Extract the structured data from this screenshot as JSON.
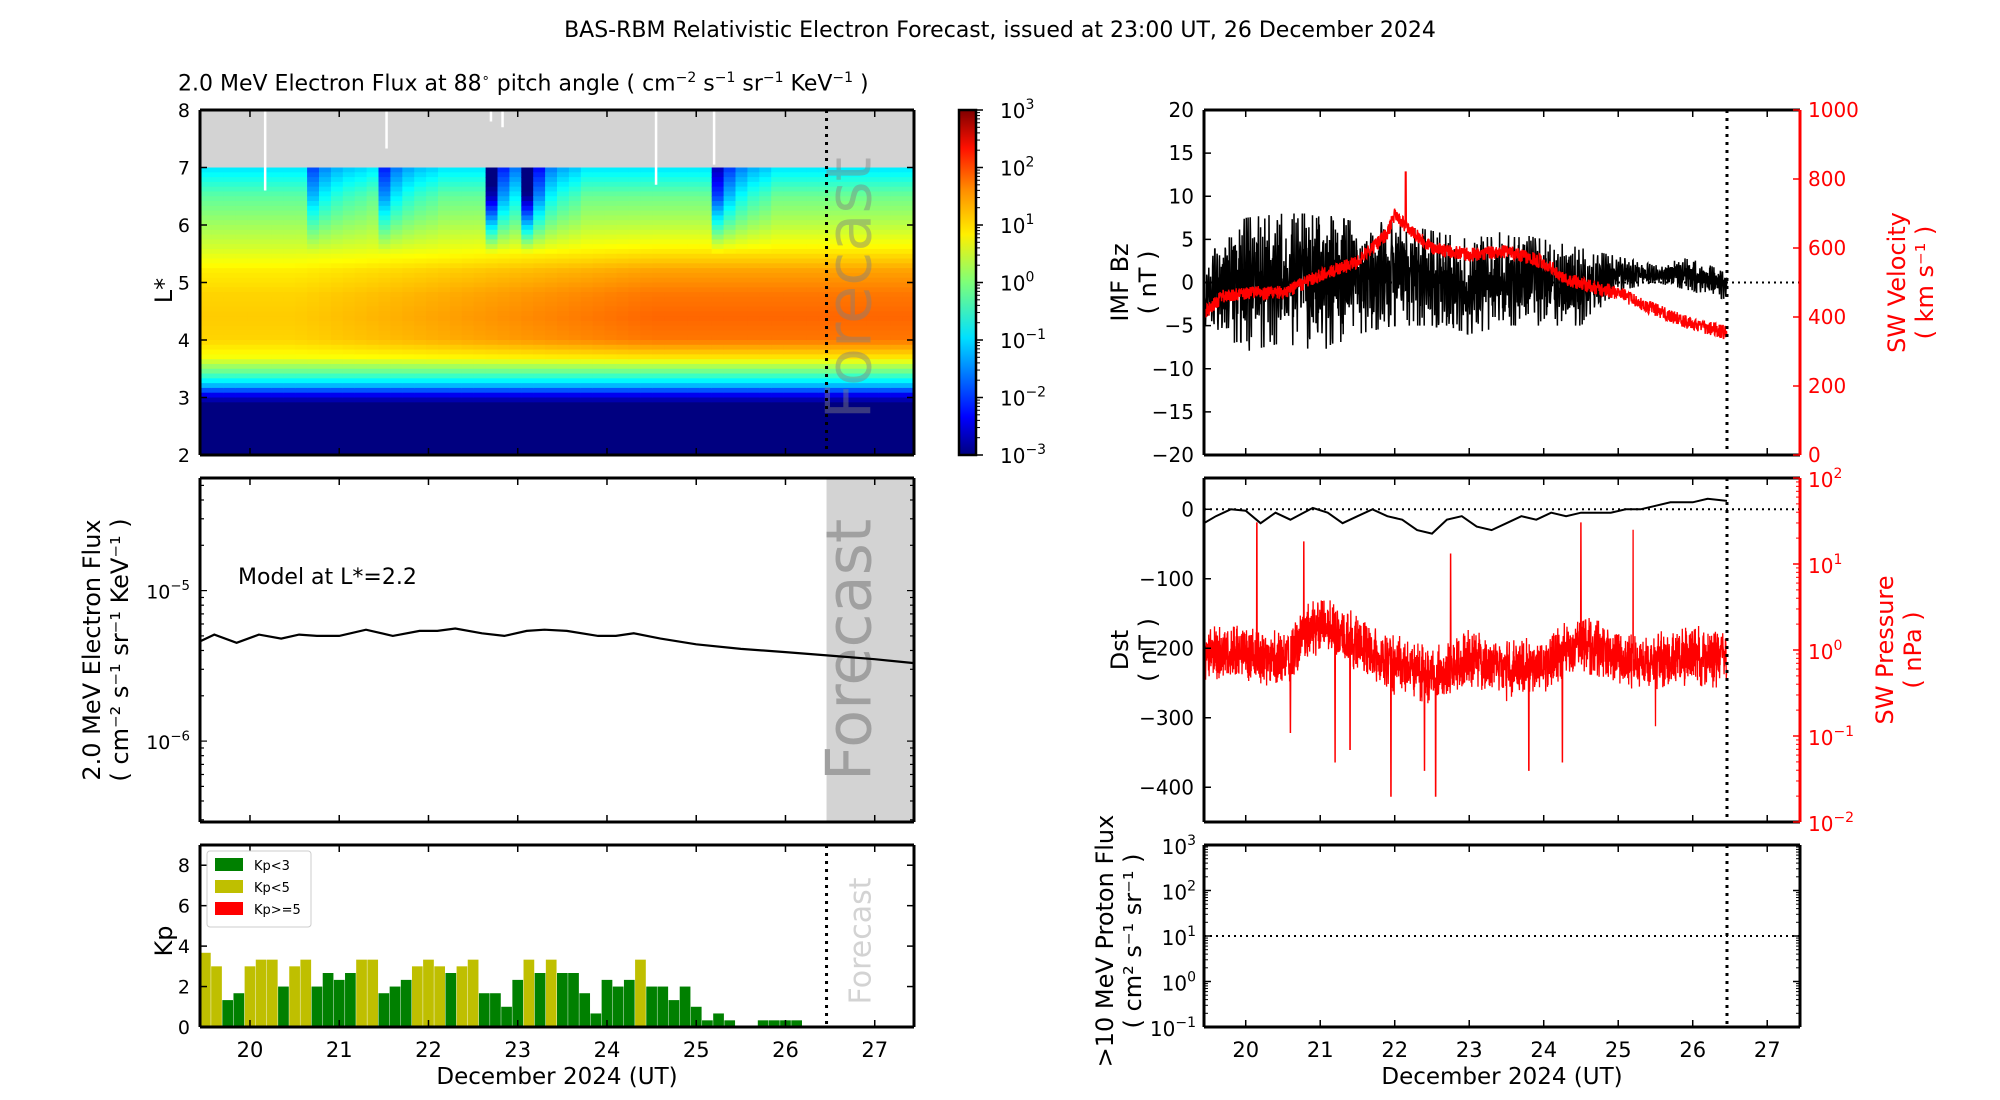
{
  "figure": {
    "title": "BAS-RBM Relativistic Electron Forecast, issued at 23:00 UT, 26 December 2024",
    "forecast_label": "Forecast",
    "xlabel": "December 2024 (UT)"
  },
  "chart_data": [
    {
      "id": "spectrogram",
      "type": "heatmap",
      "title": "2.0 MeV Electron Flux at 88° pitch angle ( cm⁻² s⁻¹ sr⁻¹ KeV⁻¹ )",
      "title_parts": {
        "main": "2.0 MeV Electron Flux at 88",
        "deg": "∘",
        "rest": " pitch angle ( cm",
        "u1": "−2",
        "s": " s",
        "u2": "−1",
        "sr": " sr",
        "u3": "−1",
        "kev": " KeV",
        "u4": "−1",
        "close": " )"
      },
      "ylabel": "L*",
      "xlim": [
        19.44,
        27.44
      ],
      "ylim": [
        2,
        8
      ],
      "yticks": [
        "2",
        "3",
        "4",
        "5",
        "6",
        "7",
        "8"
      ],
      "xticks": [
        20,
        21,
        22,
        23,
        24,
        25,
        26,
        27
      ],
      "no_data_above_L": 7,
      "forecast_start_day": 26.46,
      "colorbar": {
        "scale": "log",
        "range": [
          0.001,
          1000
        ],
        "ticks": [
          "10^3",
          "10^2",
          "10^1",
          "10^0",
          "10^-1",
          "10^-2",
          "10^-3"
        ],
        "colormap": "jet"
      },
      "profile_log10_by_L": {
        "L": [
          2.0,
          2.9,
          3.05,
          3.2,
          3.4,
          3.7,
          4.0,
          4.4,
          4.8,
          5.2,
          5.6,
          6.0,
          6.5,
          7.0
        ],
        "early": [
          -3,
          -3,
          -2.3,
          -1.2,
          -0.3,
          0.7,
          1.0,
          1.05,
          1.0,
          0.85,
          0.5,
          0.2,
          -0.2,
          -0.9
        ],
        "late": [
          -3,
          -3,
          -2.3,
          -1.2,
          -0.3,
          0.9,
          1.55,
          1.65,
          1.55,
          1.3,
          0.8,
          0.35,
          -0.1,
          -0.9
        ]
      },
      "dropouts": [
        {
          "day": 20.65,
          "depth": -1.5
        },
        {
          "day": 21.55,
          "depth": -1.2
        },
        {
          "day": 22.7,
          "depth": -2.6
        },
        {
          "day": 23.1,
          "depth": -2.4
        },
        {
          "day": 25.2,
          "depth": -2.6
        }
      ]
    },
    {
      "id": "model-flux",
      "type": "line",
      "ylabel": "2.0 MeV Electron Flux",
      "ylabel_units": "( cm⁻² s⁻¹ sr⁻¹ KeV⁻¹ )",
      "yscale": "log",
      "ylim": [
        2.9e-07,
        5.6e-05
      ],
      "yticks": [
        "10^-5",
        "10^-6"
      ],
      "annotation": "Model at L*=2.2",
      "x": [
        19.44,
        19.6,
        19.85,
        20.1,
        20.35,
        20.55,
        20.75,
        21.0,
        21.3,
        21.6,
        21.9,
        22.1,
        22.3,
        22.6,
        22.85,
        23.1,
        23.3,
        23.55,
        23.9,
        24.1,
        24.3,
        24.6,
        25.0,
        25.5,
        26.0,
        26.5,
        27.0,
        27.44
      ],
      "y": [
        4.6e-06,
        5.1e-06,
        4.5e-06,
        5.1e-06,
        4.8e-06,
        5.1e-06,
        5e-06,
        5e-06,
        5.5e-06,
        5e-06,
        5.4e-06,
        5.4e-06,
        5.6e-06,
        5.2e-06,
        5e-06,
        5.4e-06,
        5.5e-06,
        5.4e-06,
        5e-06,
        5e-06,
        5.2e-06,
        4.8e-06,
        4.4e-06,
        4.1e-06,
        3.9e-06,
        3.7e-06,
        3.5e-06,
        3.3e-06
      ]
    },
    {
      "id": "kp",
      "type": "bar",
      "ylabel": "Kp",
      "ylim": [
        0,
        9
      ],
      "yticks": [
        "0",
        "2",
        "4",
        "6",
        "8"
      ],
      "start_day": 19.5,
      "bin_days": 0.125,
      "values": [
        3.67,
        3,
        1.33,
        1.67,
        3,
        3.33,
        3.33,
        2,
        3,
        3.33,
        2,
        2.67,
        2.33,
        2.67,
        3.33,
        3.33,
        1.67,
        2,
        2.33,
        3,
        3.33,
        3,
        2.67,
        3,
        3.33,
        1.67,
        1.67,
        1,
        2.33,
        3.33,
        2.67,
        3.33,
        2.67,
        2.67,
        1.67,
        0.67,
        2.33,
        2,
        2.33,
        3.33,
        2,
        2,
        1.33,
        2,
        1,
        0.33,
        0.67,
        0.33,
        0,
        0,
        0.33,
        0.33,
        0.33,
        0.33
      ],
      "legend": [
        {
          "label": "Kp<3",
          "color": "#008000"
        },
        {
          "label": "Kp<5",
          "color": "#bfbf00"
        },
        {
          "label": "Kp>=5",
          "color": "#ff0000"
        }
      ],
      "legend_position": "top-left"
    },
    {
      "id": "imf-sw",
      "type": "line",
      "ylabel": "IMF Bz",
      "ylabel_units": "( nT )",
      "ylim": [
        -20,
        20
      ],
      "yticks": [
        "−20",
        "−15",
        "−10",
        "−5",
        "0",
        "5",
        "10",
        "15",
        "20"
      ],
      "y2label": "SW Velocity",
      "y2label_units": "( km s⁻¹ )",
      "y2lim": [
        0,
        1000
      ],
      "y2ticks": [
        "0",
        "200",
        "400",
        "600",
        "800",
        "1000"
      ],
      "bz_envelope": {
        "x": [
          19.44,
          19.7,
          20.0,
          20.5,
          21.0,
          21.5,
          22.0,
          22.5,
          23.0,
          23.5,
          24.0,
          24.5,
          25.0,
          25.5,
          26.0,
          26.46
        ],
        "upper": [
          0,
          7,
          7.5,
          8,
          8,
          7,
          7,
          6,
          5,
          6,
          5,
          4,
          3,
          2,
          3,
          1
        ],
        "lower": [
          -5,
          -6,
          -8,
          -7,
          -8,
          -6,
          -5,
          -5,
          -6,
          -5,
          -5,
          -5,
          -1,
          0,
          -1,
          -2
        ]
      },
      "sw_velocity": {
        "x": [
          19.44,
          19.7,
          20.0,
          20.5,
          21.0,
          21.5,
          21.9,
          22.0,
          22.2,
          22.5,
          23.0,
          23.5,
          24.0,
          24.3,
          24.6,
          25.0,
          25.5,
          26.0,
          26.46
        ],
        "y": [
          410,
          460,
          470,
          470,
          520,
          560,
          640,
          700,
          650,
          600,
          580,
          590,
          560,
          510,
          490,
          470,
          420,
          380,
          355
        ]
      },
      "zero_line": 0
    },
    {
      "id": "dst-pressure",
      "type": "line",
      "ylabel": "Dst",
      "ylabel_units": "( nT )",
      "ylim": [
        -450,
        45
      ],
      "yticks": [
        "−400",
        "−300",
        "−200",
        "−100",
        "0"
      ],
      "y2label": "SW Pressure",
      "y2label_units": "( nPa )",
      "y2scale": "log",
      "y2lim": [
        0.01,
        100
      ],
      "y2ticks": [
        "10^-2",
        "10^-1",
        "10^0",
        "10^1",
        "10^2"
      ],
      "dst": {
        "x": [
          19.44,
          19.6,
          19.8,
          20.0,
          20.2,
          20.4,
          20.6,
          20.9,
          21.1,
          21.3,
          21.5,
          21.7,
          21.9,
          22.1,
          22.3,
          22.5,
          22.7,
          22.9,
          23.1,
          23.3,
          23.5,
          23.7,
          23.9,
          24.1,
          24.3,
          24.5,
          24.7,
          24.9,
          25.1,
          25.3,
          25.5,
          25.7,
          26.0,
          26.2,
          26.46
        ],
        "y": [
          -20,
          -10,
          0,
          -2,
          -20,
          -5,
          -15,
          2,
          -5,
          -20,
          -10,
          0,
          -10,
          -15,
          -30,
          -35,
          -15,
          -10,
          -25,
          -30,
          -20,
          -10,
          -15,
          -5,
          -10,
          -5,
          -5,
          -5,
          0,
          0,
          5,
          10,
          10,
          15,
          12
        ]
      },
      "pressure_baseline": {
        "x": [
          19.44,
          20.0,
          20.6,
          21.0,
          21.5,
          22.0,
          22.5,
          23.0,
          23.5,
          24.0,
          24.5,
          25.0,
          25.5,
          26.0,
          26.46
        ],
        "y": [
          1.0,
          0.9,
          0.8,
          2.0,
          1.1,
          0.7,
          0.5,
          0.8,
          0.6,
          0.7,
          1.2,
          0.8,
          0.7,
          0.9,
          0.8
        ]
      },
      "pressure_spikes_up": [
        {
          "day": 20.15,
          "value": 30
        },
        {
          "day": 20.78,
          "value": 18
        },
        {
          "day": 22.75,
          "value": 13
        },
        {
          "day": 24.5,
          "value": 30
        },
        {
          "day": 25.2,
          "value": 25
        }
      ],
      "pressure_spikes_down": [
        {
          "day": 20.6,
          "value": 0.11
        },
        {
          "day": 21.2,
          "value": 0.05
        },
        {
          "day": 21.4,
          "value": 0.07
        },
        {
          "day": 21.95,
          "value": 0.02
        },
        {
          "day": 22.4,
          "value": 0.04
        },
        {
          "day": 22.55,
          "value": 0.02
        },
        {
          "day": 23.8,
          "value": 0.04
        },
        {
          "day": 24.25,
          "value": 0.05
        },
        {
          "day": 25.5,
          "value": 0.13
        }
      ],
      "zero_line": 0
    },
    {
      "id": "proton-flux",
      "type": "line",
      "ylabel": ">10 MeV Proton Flux",
      "ylabel_units": "( cm² s⁻¹ sr⁻¹ )",
      "yscale": "log",
      "ylim": [
        0.1,
        1000
      ],
      "yticks": [
        "10^-1",
        "10^0",
        "10^1",
        "10^2",
        "10^3"
      ],
      "threshold": 10,
      "values": []
    }
  ]
}
